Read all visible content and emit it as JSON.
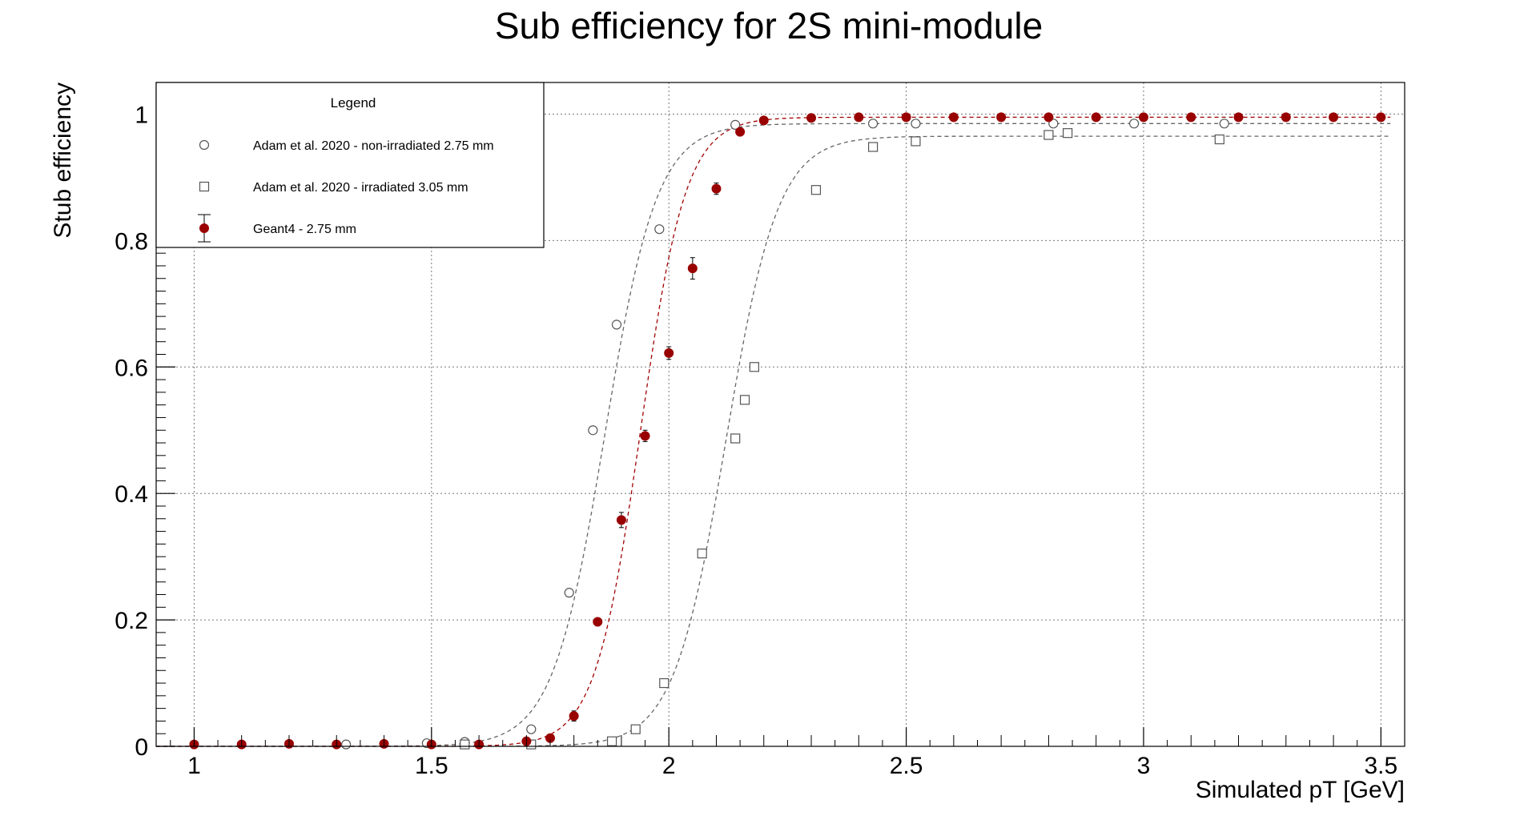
{
  "chart_data": {
    "type": "scatter",
    "title": "Sub efficiency for 2S mini-module",
    "xlabel": "Simulated pT [GeV]",
    "ylabel": "Stub efficiency",
    "xlim": [
      0.92,
      3.55
    ],
    "ylim": [
      0,
      1.05
    ],
    "x_ticks": [
      1,
      1.5,
      2,
      2.5,
      3,
      3.5
    ],
    "x_tick_labels": [
      "1",
      "1.5",
      "2",
      "2.5",
      "3",
      "3.5"
    ],
    "y_ticks": [
      0,
      0.2,
      0.4,
      0.6,
      0.8,
      1
    ],
    "y_tick_labels": [
      "0",
      "0.2",
      "0.4",
      "0.6",
      "0.8",
      "1"
    ],
    "grid": true,
    "legend_position": "top-left",
    "legend": {
      "title": "Legend",
      "entries": [
        "Adam et al. 2020 - non-irradiated 2.75 mm",
        "Adam et al. 2020 - irradiated 3.05 mm",
        "Geant4 - 2.75 mm"
      ]
    },
    "series": [
      {
        "name": "Adam et al. 2020 - non-irradiated 2.75 mm",
        "marker": "open-circle",
        "color": "#555555",
        "x": [
          1.32,
          1.49,
          1.57,
          1.71,
          1.79,
          1.84,
          1.89,
          1.98,
          2.14,
          2.43,
          2.52,
          2.81,
          2.98,
          3.17
        ],
        "y": [
          0.003,
          0.005,
          0.007,
          0.027,
          0.243,
          0.5,
          0.667,
          0.818,
          0.983,
          0.985,
          0.985,
          0.985,
          0.985,
          0.985
        ],
        "fit": {
          "plateau": 0.985,
          "mid": 1.865,
          "width": 0.055
        }
      },
      {
        "name": "Adam et al. 2020 - irradiated 3.05 mm",
        "marker": "open-square",
        "color": "#555555",
        "x": [
          1.57,
          1.71,
          1.88,
          1.93,
          1.99,
          2.07,
          2.14,
          2.16,
          2.18,
          2.31,
          2.43,
          2.52,
          2.8,
          2.84,
          3.16
        ],
        "y": [
          0.003,
          0.003,
          0.008,
          0.027,
          0.1,
          0.305,
          0.487,
          0.548,
          0.6,
          0.88,
          0.948,
          0.957,
          0.967,
          0.97,
          0.96
        ],
        "fit": {
          "plateau": 0.965,
          "mid": 2.12,
          "width": 0.055
        }
      },
      {
        "name": "Geant4 - 2.75 mm",
        "marker": "filled-circle",
        "color": "#990000",
        "x": [
          1.0,
          1.1,
          1.2,
          1.3,
          1.4,
          1.5,
          1.6,
          1.7,
          1.75,
          1.8,
          1.85,
          1.9,
          1.95,
          2.0,
          2.05,
          2.1,
          2.15,
          2.2,
          2.3,
          2.4,
          2.5,
          2.6,
          2.7,
          2.8,
          2.9,
          3.0,
          3.1,
          3.2,
          3.3,
          3.4,
          3.5
        ],
        "y": [
          0.003,
          0.003,
          0.004,
          0.003,
          0.004,
          0.003,
          0.003,
          0.008,
          0.013,
          0.048,
          0.197,
          0.358,
          0.491,
          0.622,
          0.756,
          0.882,
          0.972,
          0.99,
          0.994,
          0.995,
          0.995,
          0.995,
          0.995,
          0.995,
          0.995,
          0.995,
          0.995,
          0.995,
          0.995,
          0.995,
          0.995
        ],
        "yerr": [
          0.002,
          0.002,
          0.002,
          0.002,
          0.002,
          0.002,
          0.002,
          0.003,
          0.004,
          0.008,
          0.005,
          0.012,
          0.009,
          0.01,
          0.017,
          0.009,
          0.005,
          0.003,
          0.002,
          0.002,
          0.002,
          0.002,
          0.002,
          0.002,
          0.002,
          0.002,
          0.002,
          0.002,
          0.002,
          0.002,
          0.002
        ],
        "fit": {
          "plateau": 0.995,
          "mid": 1.94,
          "width": 0.048
        }
      }
    ]
  }
}
